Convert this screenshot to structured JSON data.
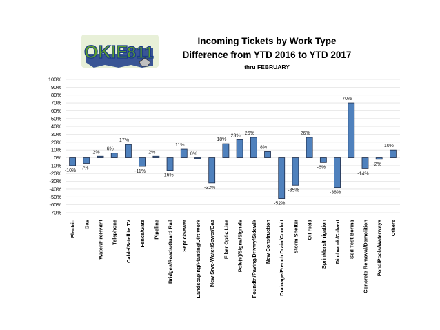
{
  "logo": {
    "word1": "OKIE",
    "word2": "811"
  },
  "chart_data": {
    "type": "bar",
    "title": "Incoming Tickets by Work Type",
    "subtitle": "Difference from YTD 2016 to YTD 2017",
    "subsubtitle": "thru FEBRUARY",
    "categories": [
      "Electric",
      "Gas",
      "Water/FireHydnt",
      "Telephone",
      "Cable/Satellite TV",
      "Fence/Gate",
      "Pipeline",
      "Bridges/Roads/Guard Rail",
      "Septic/Sewer",
      "Landscaping/Planting/Dirt Work",
      "New Srvc-Water/Sewer/Gas",
      "Fiber Optic Line",
      "Pole(s)/Signs/Signals",
      "Foundtn/Paving/Drivwy/Sidewlk",
      "New Construction",
      "Drainage/French Drain/Conduit",
      "Storm Shelter",
      "Oil Field",
      "Sprinklers/Irrigation",
      "Ditchwork/Culvert",
      "Soil Test Boring",
      "Concrete Removal/Demolition",
      "Pond/Pools/Waterways",
      "Others"
    ],
    "values": [
      -10,
      -7,
      2,
      6,
      17,
      -11,
      2,
      -16,
      11,
      0,
      -32,
      18,
      23,
      26,
      8,
      -52,
      -35,
      26,
      -6,
      -38,
      70,
      -14,
      -2,
      10
    ],
    "data_labels": [
      "-10%",
      "-7%",
      "2%",
      "6%",
      "17%",
      "-11%",
      "2%",
      "-16%",
      "11%",
      "0%",
      "-32%",
      "18%",
      "23%",
      "26%",
      "8%",
      "-52%",
      "-35%",
      "26%",
      "-6%",
      "-38%",
      "70%",
      "-14%",
      "-2%",
      "10%"
    ],
    "ylim": [
      -70,
      100
    ],
    "yticks": [
      "100%",
      "90%",
      "80%",
      "70%",
      "60%",
      "50%",
      "40%",
      "30%",
      "20%",
      "10%",
      "0%",
      "-10%",
      "-20%",
      "-30%",
      "-40%",
      "-50%",
      "-60%",
      "-70%"
    ],
    "ytick_values": [
      100,
      90,
      80,
      70,
      60,
      50,
      40,
      30,
      20,
      10,
      0,
      -10,
      -20,
      -30,
      -40,
      -50,
      -60,
      -70
    ],
    "grid": true,
    "legend": "none",
    "colors": {
      "bar_fill": "#4f81bd",
      "bar_stroke": "#1f2d4a",
      "gridline": "#e3e3e3",
      "logo_green": "#5b9e2e",
      "logo_blue": "#1a3a8a"
    }
  }
}
